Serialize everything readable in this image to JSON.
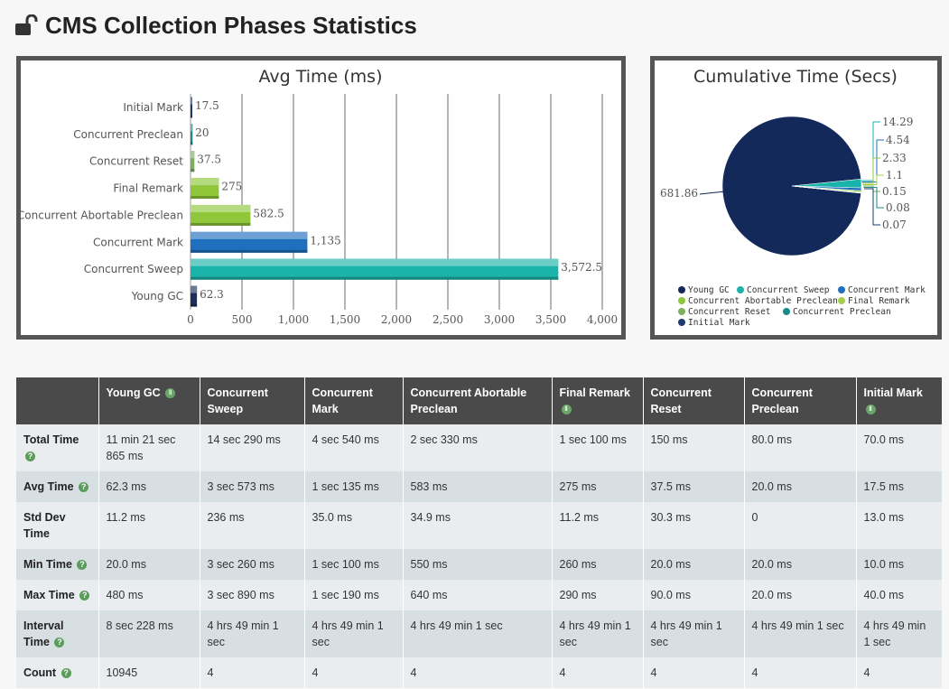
{
  "page": {
    "title": "CMS Collection Phases Statistics",
    "icon": "unlock-icon"
  },
  "chart_data": [
    {
      "type": "bar",
      "title": "Avg Time (ms)",
      "categories": [
        "Initial Mark",
        "Concurrent Preclean",
        "Concurrent Reset",
        "Final Remark",
        "Concurrent Abortable Preclean",
        "Concurrent Mark",
        "Concurrent Sweep",
        "Young GC"
      ],
      "values": [
        17.5,
        20,
        37.5,
        275,
        582.5,
        1135,
        3572.5,
        62.3
      ],
      "value_labels": [
        "17.5",
        "20",
        "37.5",
        "275",
        "582.5",
        "1,135",
        "3,572.5",
        "62.3"
      ],
      "colors": [
        "#1e3a6e",
        "#1a8a8a",
        "#7fae5e",
        "#8fc63a",
        "#8fc63a",
        "#1f6fbf",
        "#1ab3a9",
        "#1e2f5e"
      ],
      "xlim": [
        0,
        4000
      ],
      "xticks": [
        0,
        500,
        1000,
        1500,
        2000,
        2500,
        3000,
        3500,
        4000
      ],
      "xtick_labels": [
        "0",
        "500",
        "1,000",
        "1,500",
        "2,000",
        "2,500",
        "3,000",
        "3,500",
        "4,000"
      ],
      "xlabel": "",
      "ylabel": ""
    },
    {
      "type": "pie",
      "title": "Cumulative Time (Secs)",
      "slices": [
        {
          "name": "Young GC",
          "value": 681.86,
          "label": "681.86",
          "color": "#13295a"
        },
        {
          "name": "Concurrent Sweep",
          "value": 14.29,
          "label": "14.29",
          "color": "#1ab3a9"
        },
        {
          "name": "Concurrent Mark",
          "value": 4.54,
          "label": "4.54",
          "color": "#1f6fbf"
        },
        {
          "name": "Concurrent Abortable Preclean",
          "value": 2.33,
          "label": "2.33",
          "color": "#8fc63a"
        },
        {
          "name": "Final Remark",
          "value": 1.1,
          "label": "1.1",
          "color": "#a4d04a"
        },
        {
          "name": "Concurrent Reset",
          "value": 0.15,
          "label": "0.15",
          "color": "#7fae5e"
        },
        {
          "name": "Concurrent Preclean",
          "value": 0.08,
          "label": "0.08",
          "color": "#1a8a8a"
        },
        {
          "name": "Initial Mark",
          "value": 0.07,
          "label": "0.07",
          "color": "#1e3a6e"
        }
      ],
      "legend_position": "bottom"
    }
  ],
  "table": {
    "columns": [
      {
        "label": "",
        "help": false
      },
      {
        "label": "Young GC",
        "help": true
      },
      {
        "label": "Concurrent Sweep",
        "help": false
      },
      {
        "label": "Concurrent Mark",
        "help": false
      },
      {
        "label": "Concurrent Abortable Preclean",
        "help": false
      },
      {
        "label": "Final Remark",
        "help": true
      },
      {
        "label": "Concurrent Reset",
        "help": false
      },
      {
        "label": "Concurrent Preclean",
        "help": false
      },
      {
        "label": "Initial Mark",
        "help": true
      }
    ],
    "rows": [
      {
        "label": "Total Time",
        "cells": [
          "11 min 21 sec 865 ms",
          "14 sec 290 ms",
          "4 sec 540 ms",
          "2 sec 330 ms",
          "1 sec 100 ms",
          "150 ms",
          "80.0 ms",
          "70.0 ms"
        ]
      },
      {
        "label": "Avg Time",
        "cells": [
          "62.3 ms",
          "3 sec 573 ms",
          "1 sec 135 ms",
          "583 ms",
          "275 ms",
          "37.5 ms",
          "20.0 ms",
          "17.5 ms"
        ]
      },
      {
        "label": "Std Dev Time",
        "cells": [
          "11.2 ms",
          "236 ms",
          "35.0 ms",
          "34.9 ms",
          "11.2 ms",
          "30.3 ms",
          "0",
          "13.0 ms"
        ]
      },
      {
        "label": "Min Time",
        "cells": [
          "20.0 ms",
          "3 sec 260 ms",
          "1 sec 100 ms",
          "550 ms",
          "260 ms",
          "20.0 ms",
          "20.0 ms",
          "10.0 ms"
        ]
      },
      {
        "label": "Max Time",
        "cells": [
          "480 ms",
          "3 sec 890 ms",
          "1 sec 190 ms",
          "640 ms",
          "290 ms",
          "90.0 ms",
          "20.0 ms",
          "40.0 ms"
        ]
      },
      {
        "label": "Interval Time",
        "cells": [
          "8 sec 228 ms",
          "4 hrs 49 min 1 sec",
          "4 hrs 49 min 1 sec",
          "4 hrs 49 min 1 sec",
          "4 hrs 49 min 1 sec",
          "4 hrs 49 min 1 sec",
          "4 hrs 49 min 1 sec",
          "4 hrs 49 min 1 sec"
        ]
      },
      {
        "label": "Count",
        "cells": [
          "10945",
          "4",
          "4",
          "4",
          "4",
          "4",
          "4",
          "4"
        ]
      }
    ],
    "row_help": [
      true,
      true,
      false,
      true,
      true,
      true,
      true
    ]
  }
}
